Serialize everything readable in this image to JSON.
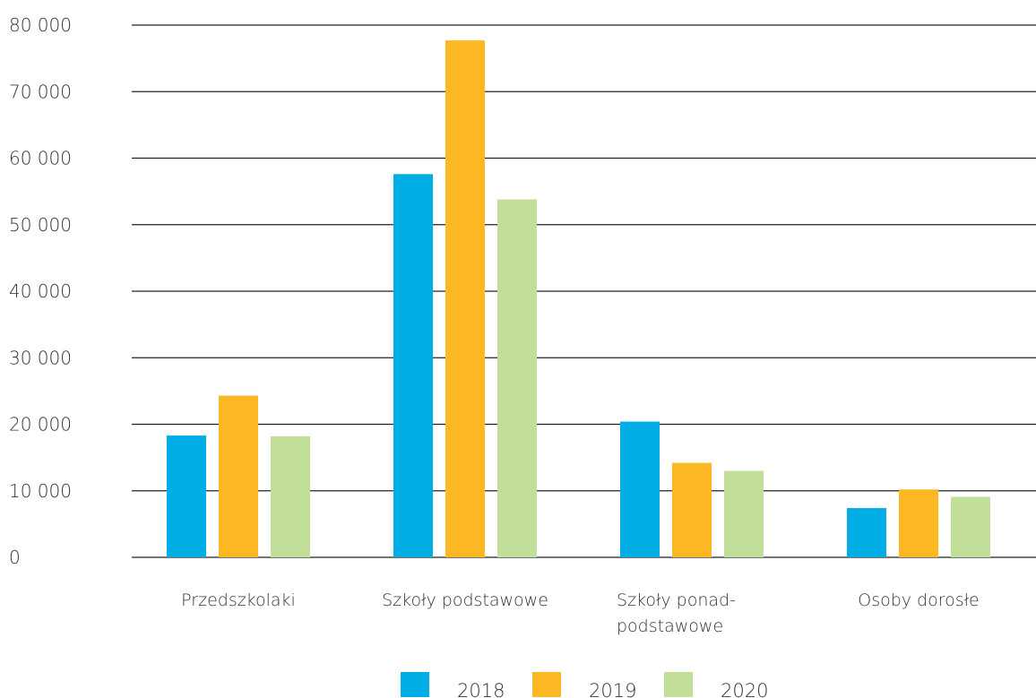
{
  "chart_data": {
    "type": "bar",
    "title": "",
    "xlabel": "",
    "ylabel": "",
    "ylim": [
      0,
      80000
    ],
    "yticks": [
      0,
      10000,
      20000,
      30000,
      40000,
      50000,
      60000,
      70000,
      80000
    ],
    "ytick_labels": [
      "0",
      "10 000",
      "20 000",
      "30 000",
      "40 000",
      "50 000",
      "60 000",
      "70 000",
      "80 000"
    ],
    "grid": true,
    "legend_position": "bottom",
    "categories": [
      [
        "Przedszkolaki"
      ],
      [
        "Szkoły podstawowe"
      ],
      [
        "Szkoły  ponad-",
        "podstawowe"
      ],
      [
        "Osoby dorosłe"
      ]
    ],
    "series": [
      {
        "name": "2018",
        "color": "#00ADE4",
        "values": [
          18300,
          57600,
          20400,
          7400
        ]
      },
      {
        "name": "2019",
        "color": "#FBB823",
        "values": [
          24300,
          77700,
          14200,
          10200
        ]
      },
      {
        "name": "2020",
        "color": "#C2DF9A",
        "values": [
          18200,
          53800,
          13000,
          9100
        ]
      }
    ]
  }
}
